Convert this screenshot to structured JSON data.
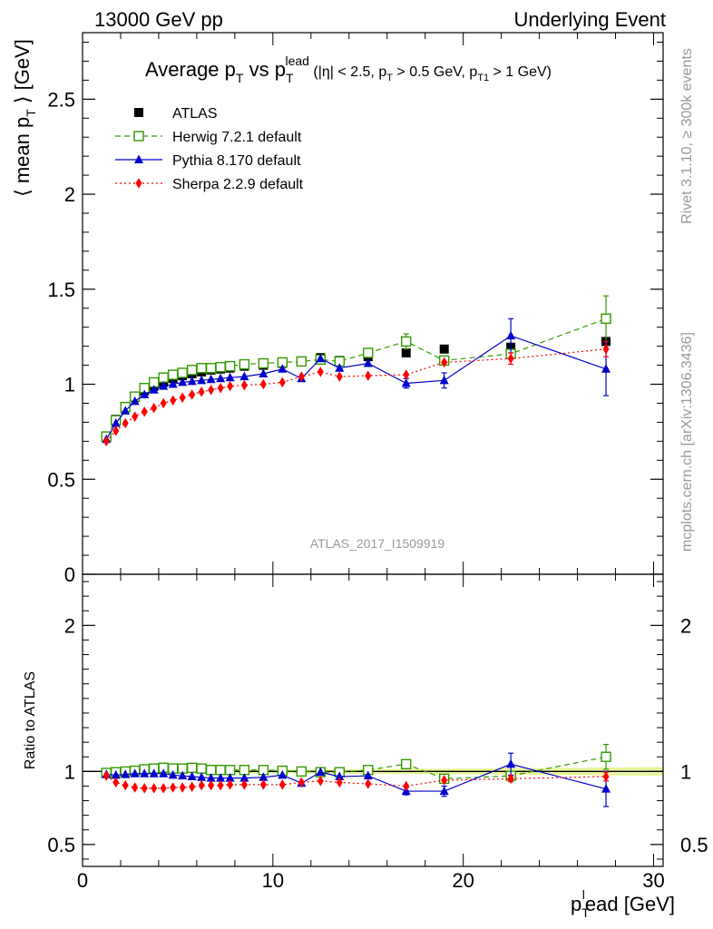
{
  "header": {
    "left": "13000 GeV pp",
    "right": "Underlying Event"
  },
  "side_labels": {
    "right_top": "Rivet 3.1.10, ≥ 300k events",
    "right_bottom": "mcplots.cern.ch [arXiv:1306.3436]"
  },
  "analysis_id": "ATLAS_2017_I1509919",
  "chart_data": [
    {
      "type": "scatter",
      "panel": "main",
      "title": {
        "main": "Average p",
        "main_sub": "T",
        "vs": " vs p",
        "vs_sub": "T",
        "vs_sup": "lead",
        "cuts": [
          {
            "text": " (|η| < 2.5, p",
            "sub": "T"
          },
          {
            "text": " > 0.5 GeV, p",
            "sub": "T1"
          },
          {
            "text": " > 1 GeV)",
            "sub": ""
          }
        ]
      },
      "ylabel": {
        "pre": "⟨ mean p",
        "sub": "T",
        "post": " ⟩ [GeV]"
      },
      "xlim": [
        0,
        30.5
      ],
      "ylim": [
        0,
        2.85
      ],
      "y_ticks": [
        {
          "value": 0,
          "label": "0"
        },
        {
          "value": 0.5,
          "label": "0.5"
        },
        {
          "value": 1,
          "label": "1"
        },
        {
          "value": 1.5,
          "label": "1.5"
        },
        {
          "value": 2,
          "label": "2"
        },
        {
          "value": 2.5,
          "label": "2.5"
        }
      ],
      "legend_position": "top-left",
      "series": [
        {
          "name": "ATLAS",
          "color": "#000000",
          "marker": "filled-square",
          "line": "none",
          "points": [
            [
              1.25,
              0.725
            ],
            [
              1.75,
              0.815
            ],
            [
              2.25,
              0.88
            ],
            [
              2.75,
              0.93
            ],
            [
              3.25,
              0.965
            ],
            [
              3.75,
              0.99
            ],
            [
              4.25,
              1.01
            ],
            [
              4.75,
              1.03
            ],
            [
              5.25,
              1.045
            ],
            [
              5.75,
              1.055
            ],
            [
              6.25,
              1.065
            ],
            [
              6.75,
              1.075
            ],
            [
              7.25,
              1.08
            ],
            [
              7.75,
              1.085
            ],
            [
              8.5,
              1.095
            ],
            [
              9.5,
              1.1
            ],
            [
              10.5,
              1.11
            ],
            [
              11.5,
              1.12
            ],
            [
              12.5,
              1.14
            ],
            [
              13.5,
              1.125
            ],
            [
              15.0,
              1.145
            ],
            [
              17.0,
              1.165
            ],
            [
              19.0,
              1.185
            ],
            [
              22.5,
              1.195
            ],
            [
              27.5,
              1.225
            ]
          ]
        },
        {
          "name": "Herwig 7.2.1 default",
          "color": "#339900",
          "marker": "open-square",
          "line": "dashed",
          "points": [
            [
              1.25,
              0.725
            ],
            [
              1.75,
              0.81
            ],
            [
              2.25,
              0.88
            ],
            [
              2.75,
              0.935
            ],
            [
              3.25,
              0.98
            ],
            [
              3.75,
              1.01
            ],
            [
              4.25,
              1.035
            ],
            [
              4.75,
              1.05
            ],
            [
              5.25,
              1.06
            ],
            [
              5.75,
              1.075
            ],
            [
              6.25,
              1.085
            ],
            [
              6.75,
              1.085
            ],
            [
              7.25,
              1.09
            ],
            [
              7.75,
              1.095
            ],
            [
              8.5,
              1.105
            ],
            [
              9.5,
              1.11
            ],
            [
              10.5,
              1.115
            ],
            [
              11.5,
              1.12
            ],
            [
              12.5,
              1.13
            ],
            [
              13.5,
              1.12
            ],
            [
              15.0,
              1.165
            ],
            [
              17.0,
              1.225
            ],
            [
              19.0,
              1.125
            ],
            [
              22.5,
              1.16
            ],
            [
              27.5,
              1.345
            ]
          ],
          "errors": [
            0,
            0,
            0,
            0,
            0,
            0,
            0,
            0,
            0,
            0,
            0,
            0,
            0,
            0,
            0,
            0,
            0,
            0,
            0,
            0,
            0,
            0.04,
            0,
            0,
            0.12
          ]
        },
        {
          "name": "Pythia 8.170 default",
          "color": "#0000cc",
          "marker": "filled-triangle",
          "line": "solid",
          "points": [
            [
              1.25,
              0.71
            ],
            [
              1.75,
              0.795
            ],
            [
              2.25,
              0.86
            ],
            [
              2.75,
              0.91
            ],
            [
              3.25,
              0.945
            ],
            [
              3.75,
              0.97
            ],
            [
              4.25,
              0.99
            ],
            [
              4.75,
              1.0
            ],
            [
              5.25,
              1.01
            ],
            [
              5.75,
              1.015
            ],
            [
              6.25,
              1.02
            ],
            [
              6.75,
              1.025
            ],
            [
              7.25,
              1.03
            ],
            [
              7.75,
              1.035
            ],
            [
              8.5,
              1.04
            ],
            [
              9.5,
              1.055
            ],
            [
              10.5,
              1.08
            ],
            [
              11.5,
              1.03
            ],
            [
              12.5,
              1.135
            ],
            [
              13.5,
              1.085
            ],
            [
              15.0,
              1.11
            ],
            [
              17.0,
              1.005
            ],
            [
              19.0,
              1.02
            ],
            [
              22.5,
              1.255
            ],
            [
              27.5,
              1.08
            ]
          ],
          "errors": [
            0,
            0,
            0,
            0,
            0,
            0,
            0,
            0,
            0,
            0,
            0,
            0,
            0,
            0,
            0,
            0,
            0,
            0,
            0,
            0,
            0,
            0.025,
            0.04,
            0.09,
            0.14
          ]
        },
        {
          "name": "Sherpa 2.2.9 default",
          "color": "#ff0000",
          "marker": "filled-diamond",
          "line": "dotted",
          "points": [
            [
              1.25,
              0.7
            ],
            [
              1.75,
              0.755
            ],
            [
              2.25,
              0.795
            ],
            [
              2.75,
              0.83
            ],
            [
              3.25,
              0.855
            ],
            [
              3.75,
              0.875
            ],
            [
              4.25,
              0.9
            ],
            [
              4.75,
              0.915
            ],
            [
              5.25,
              0.93
            ],
            [
              5.75,
              0.945
            ],
            [
              6.25,
              0.96
            ],
            [
              6.75,
              0.97
            ],
            [
              7.25,
              0.98
            ],
            [
              7.75,
              0.99
            ],
            [
              8.5,
              0.995
            ],
            [
              9.5,
              1.0
            ],
            [
              10.5,
              1.01
            ],
            [
              11.5,
              1.04
            ],
            [
              12.5,
              1.065
            ],
            [
              13.5,
              1.04
            ],
            [
              15.0,
              1.045
            ],
            [
              17.0,
              1.05
            ],
            [
              19.0,
              1.115
            ],
            [
              22.5,
              1.135
            ],
            [
              27.5,
              1.185
            ]
          ],
          "errors": [
            0,
            0,
            0,
            0,
            0,
            0,
            0,
            0,
            0,
            0,
            0,
            0,
            0,
            0,
            0,
            0,
            0,
            0,
            0,
            0,
            0,
            0,
            0,
            0.03,
            0.04
          ]
        }
      ]
    },
    {
      "type": "scatter",
      "panel": "ratio",
      "ylabel": "Ratio to ATLAS",
      "xlabel": {
        "pre": "p",
        "sub": "T",
        "sup": "l",
        "post": "ead [GeV]"
      },
      "xlim": [
        0,
        30.5
      ],
      "ylim": [
        0.35,
        2.35
      ],
      "x_ticks": [
        {
          "value": 0,
          "label": "0"
        },
        {
          "value": 10,
          "label": "10"
        },
        {
          "value": 20,
          "label": "20"
        },
        {
          "value": 30,
          "label": "30"
        }
      ],
      "y_ticks": [
        {
          "value": 0.5,
          "label": "0.5"
        },
        {
          "value": 1,
          "label": "1"
        },
        {
          "value": 2,
          "label": "2"
        }
      ],
      "reference_line": 1,
      "band_color": "#e8f49b",
      "band": [
        [
          1.0,
          0.01
        ],
        [
          12.0,
          0.015
        ],
        [
          20.0,
          0.02
        ],
        [
          30.5,
          0.03
        ]
      ],
      "series": [
        {
          "name": "Herwig 7.2.1 default",
          "color": "#339900",
          "marker": "open-square",
          "line": "dashed",
          "points": [
            [
              1.25,
              0.99
            ],
            [
              1.75,
              0.995
            ],
            [
              2.25,
              1.0
            ],
            [
              2.75,
              1.005
            ],
            [
              3.25,
              1.015
            ],
            [
              3.75,
              1.02
            ],
            [
              4.25,
              1.025
            ],
            [
              4.75,
              1.02
            ],
            [
              5.25,
              1.02
            ],
            [
              5.75,
              1.025
            ],
            [
              6.25,
              1.02
            ],
            [
              6.75,
              1.01
            ],
            [
              7.25,
              1.01
            ],
            [
              7.75,
              1.01
            ],
            [
              8.5,
              1.01
            ],
            [
              9.5,
              1.01
            ],
            [
              10.5,
              1.005
            ],
            [
              11.5,
              1.0
            ],
            [
              12.5,
              0.995
            ],
            [
              13.5,
              0.995
            ],
            [
              15.0,
              1.01
            ],
            [
              17.0,
              1.05
            ],
            [
              19.0,
              0.95
            ],
            [
              22.5,
              0.97
            ],
            [
              27.5,
              1.1
            ]
          ],
          "errors": [
            0,
            0,
            0,
            0,
            0,
            0,
            0,
            0,
            0,
            0,
            0,
            0,
            0,
            0,
            0,
            0,
            0,
            0,
            0,
            0,
            0,
            0.025,
            0,
            0,
            0.085
          ]
        },
        {
          "name": "Pythia 8.170 default",
          "color": "#0000cc",
          "marker": "filled-triangle",
          "line": "solid",
          "points": [
            [
              1.25,
              0.98
            ],
            [
              1.75,
              0.975
            ],
            [
              2.25,
              0.98
            ],
            [
              2.75,
              0.985
            ],
            [
              3.25,
              0.985
            ],
            [
              3.75,
              0.985
            ],
            [
              4.25,
              0.985
            ],
            [
              4.75,
              0.975
            ],
            [
              5.25,
              0.97
            ],
            [
              5.75,
              0.965
            ],
            [
              6.25,
              0.96
            ],
            [
              6.75,
              0.955
            ],
            [
              7.25,
              0.955
            ],
            [
              7.75,
              0.955
            ],
            [
              8.5,
              0.955
            ],
            [
              9.5,
              0.96
            ],
            [
              10.5,
              0.975
            ],
            [
              11.5,
              0.92
            ],
            [
              12.5,
              0.995
            ],
            [
              13.5,
              0.965
            ],
            [
              15.0,
              0.97
            ],
            [
              17.0,
              0.865
            ],
            [
              19.0,
              0.865
            ],
            [
              22.5,
              1.05
            ],
            [
              27.5,
              0.88
            ]
          ],
          "errors": [
            0,
            0,
            0,
            0,
            0,
            0,
            0,
            0,
            0,
            0,
            0,
            0,
            0,
            0,
            0,
            0,
            0,
            0,
            0,
            0,
            0,
            0.025,
            0.035,
            0.075,
            0.12
          ]
        },
        {
          "name": "Sherpa 2.2.9 default",
          "color": "#ff0000",
          "marker": "filled-diamond",
          "line": "dotted",
          "points": [
            [
              1.25,
              0.97
            ],
            [
              1.75,
              0.925
            ],
            [
              2.25,
              0.905
            ],
            [
              2.75,
              0.89
            ],
            [
              3.25,
              0.885
            ],
            [
              3.75,
              0.885
            ],
            [
              4.25,
              0.885
            ],
            [
              4.75,
              0.89
            ],
            [
              5.25,
              0.89
            ],
            [
              5.75,
              0.895
            ],
            [
              6.25,
              0.905
            ],
            [
              6.75,
              0.905
            ],
            [
              7.25,
              0.905
            ],
            [
              7.75,
              0.91
            ],
            [
              8.5,
              0.91
            ],
            [
              9.5,
              0.91
            ],
            [
              10.5,
              0.91
            ],
            [
              11.5,
              0.925
            ],
            [
              12.5,
              0.935
            ],
            [
              13.5,
              0.925
            ],
            [
              15.0,
              0.915
            ],
            [
              17.0,
              0.9
            ],
            [
              19.0,
              0.94
            ],
            [
              22.5,
              0.95
            ],
            [
              27.5,
              0.965
            ]
          ],
          "errors": [
            0,
            0,
            0,
            0,
            0,
            0,
            0,
            0,
            0,
            0,
            0,
            0,
            0,
            0,
            0,
            0,
            0,
            0,
            0,
            0,
            0,
            0,
            0,
            0.02,
            0.03
          ]
        }
      ]
    }
  ]
}
